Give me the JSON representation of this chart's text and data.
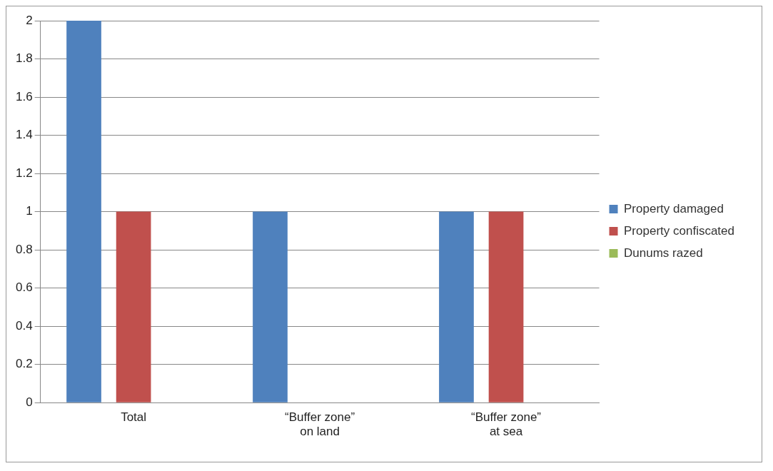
{
  "chart_data": {
    "type": "bar",
    "categories": [
      "Total",
      "“Buffer zone”\non land",
      "“Buffer zone”\nat sea"
    ],
    "series": [
      {
        "name": "Property damaged",
        "color": "#4f81bd",
        "values": [
          2,
          1,
          1
        ]
      },
      {
        "name": "Property confiscated",
        "color": "#c0504d",
        "values": [
          1,
          0,
          1
        ]
      },
      {
        "name": "Dunums razed",
        "color": "#9bbb59",
        "values": [
          0,
          0,
          0
        ]
      }
    ],
    "ylim": [
      0,
      2
    ],
    "yticks": [
      0,
      0.2,
      0.4,
      0.6,
      0.8,
      1,
      1.2,
      1.4,
      1.6,
      1.8,
      2
    ],
    "grid": "y",
    "legend": "right"
  }
}
